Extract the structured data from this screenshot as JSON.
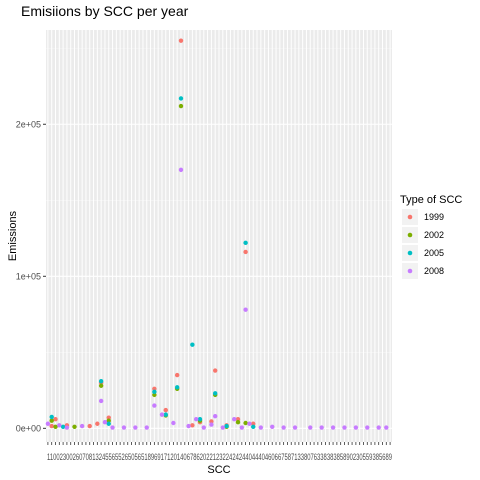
{
  "chart_data": {
    "type": "scatter",
    "title": "Emisiions by SCC per year",
    "xlabel": "SCC",
    "ylabel": "Emissions",
    "ylim": [
      -9000,
      262000
    ],
    "yticks": [
      {
        "value": 0,
        "label": "0e+00"
      },
      {
        "value": 100000,
        "label": "1e+05"
      },
      {
        "value": 200000,
        "label": "2e+05"
      }
    ],
    "x_tick_labels": "1100230026070813245565526505651896917120140678620221232242424404440460667587133807633838385890230559385689",
    "category_count": 91,
    "legend": {
      "title": "Type of SCC",
      "position": "right"
    },
    "series": [
      {
        "name": "1999",
        "color": "#F8766D",
        "points": [
          {
            "x": 2,
            "y": 1500
          },
          {
            "x": 3,
            "y": 6000
          },
          {
            "x": 6,
            "y": 2000
          },
          {
            "x": 12,
            "y": 1500
          },
          {
            "x": 14,
            "y": 3000
          },
          {
            "x": 15,
            "y": 30000
          },
          {
            "x": 17,
            "y": 7000
          },
          {
            "x": 29,
            "y": 26000
          },
          {
            "x": 32,
            "y": 12000
          },
          {
            "x": 35,
            "y": 35000
          },
          {
            "x": 36,
            "y": 255000
          },
          {
            "x": 39,
            "y": 2000
          },
          {
            "x": 41,
            "y": 4000
          },
          {
            "x": 44,
            "y": 4500
          },
          {
            "x": 45,
            "y": 38000
          },
          {
            "x": 48,
            "y": 2000
          },
          {
            "x": 51,
            "y": 6000
          },
          {
            "x": 53,
            "y": 116000
          },
          {
            "x": 55,
            "y": 3000
          }
        ]
      },
      {
        "name": "2002",
        "color": "#7CAE00",
        "points": [
          {
            "x": 2,
            "y": 5000
          },
          {
            "x": 3,
            "y": 1000
          },
          {
            "x": 8,
            "y": 1000
          },
          {
            "x": 15,
            "y": 28000
          },
          {
            "x": 17,
            "y": 5000
          },
          {
            "x": 29,
            "y": 22000
          },
          {
            "x": 32,
            "y": 8500
          },
          {
            "x": 35,
            "y": 26000
          },
          {
            "x": 36,
            "y": 212000
          },
          {
            "x": 41,
            "y": 5000
          },
          {
            "x": 45,
            "y": 22000
          },
          {
            "x": 48,
            "y": 1000
          },
          {
            "x": 51,
            "y": 4000
          },
          {
            "x": 53,
            "y": 3500
          }
        ]
      },
      {
        "name": "2005",
        "color": "#00BFC4",
        "points": [
          {
            "x": 2,
            "y": 7500
          },
          {
            "x": 5,
            "y": 1000
          },
          {
            "x": 15,
            "y": 31000
          },
          {
            "x": 17,
            "y": 3000
          },
          {
            "x": 29,
            "y": 24000
          },
          {
            "x": 32,
            "y": 9000
          },
          {
            "x": 35,
            "y": 27000
          },
          {
            "x": 36,
            "y": 217000
          },
          {
            "x": 39,
            "y": 55000
          },
          {
            "x": 41,
            "y": 6000
          },
          {
            "x": 45,
            "y": 23000
          },
          {
            "x": 48,
            "y": 1500
          },
          {
            "x": 53,
            "y": 122000
          },
          {
            "x": 55,
            "y": 1000
          }
        ]
      },
      {
        "name": "2008",
        "color": "#C77CFF",
        "points": [
          {
            "x": 1,
            "y": 3000
          },
          {
            "x": 4,
            "y": 2000
          },
          {
            "x": 6,
            "y": 500
          },
          {
            "x": 10,
            "y": 1500
          },
          {
            "x": 15,
            "y": 18000
          },
          {
            "x": 16,
            "y": 4000
          },
          {
            "x": 18,
            "y": 500
          },
          {
            "x": 21,
            "y": 500
          },
          {
            "x": 24,
            "y": 500
          },
          {
            "x": 27,
            "y": 500
          },
          {
            "x": 29,
            "y": 15000
          },
          {
            "x": 31,
            "y": 9000
          },
          {
            "x": 34,
            "y": 3500
          },
          {
            "x": 36,
            "y": 170000
          },
          {
            "x": 38,
            "y": 1500
          },
          {
            "x": 40,
            "y": 6000
          },
          {
            "x": 42,
            "y": 500
          },
          {
            "x": 44,
            "y": 2500
          },
          {
            "x": 45,
            "y": 8000
          },
          {
            "x": 47,
            "y": 500
          },
          {
            "x": 50,
            "y": 6000
          },
          {
            "x": 52,
            "y": 500
          },
          {
            "x": 53,
            "y": 78000
          },
          {
            "x": 54,
            "y": 3000
          },
          {
            "x": 57,
            "y": 500
          },
          {
            "x": 60,
            "y": 1000
          },
          {
            "x": 63,
            "y": 500
          },
          {
            "x": 66,
            "y": 500
          },
          {
            "x": 70,
            "y": 500
          },
          {
            "x": 73,
            "y": 500
          },
          {
            "x": 76,
            "y": 500
          },
          {
            "x": 79,
            "y": 500
          },
          {
            "x": 82,
            "y": 500
          },
          {
            "x": 85,
            "y": 500
          },
          {
            "x": 88,
            "y": 500
          },
          {
            "x": 90,
            "y": 500
          }
        ]
      }
    ]
  }
}
